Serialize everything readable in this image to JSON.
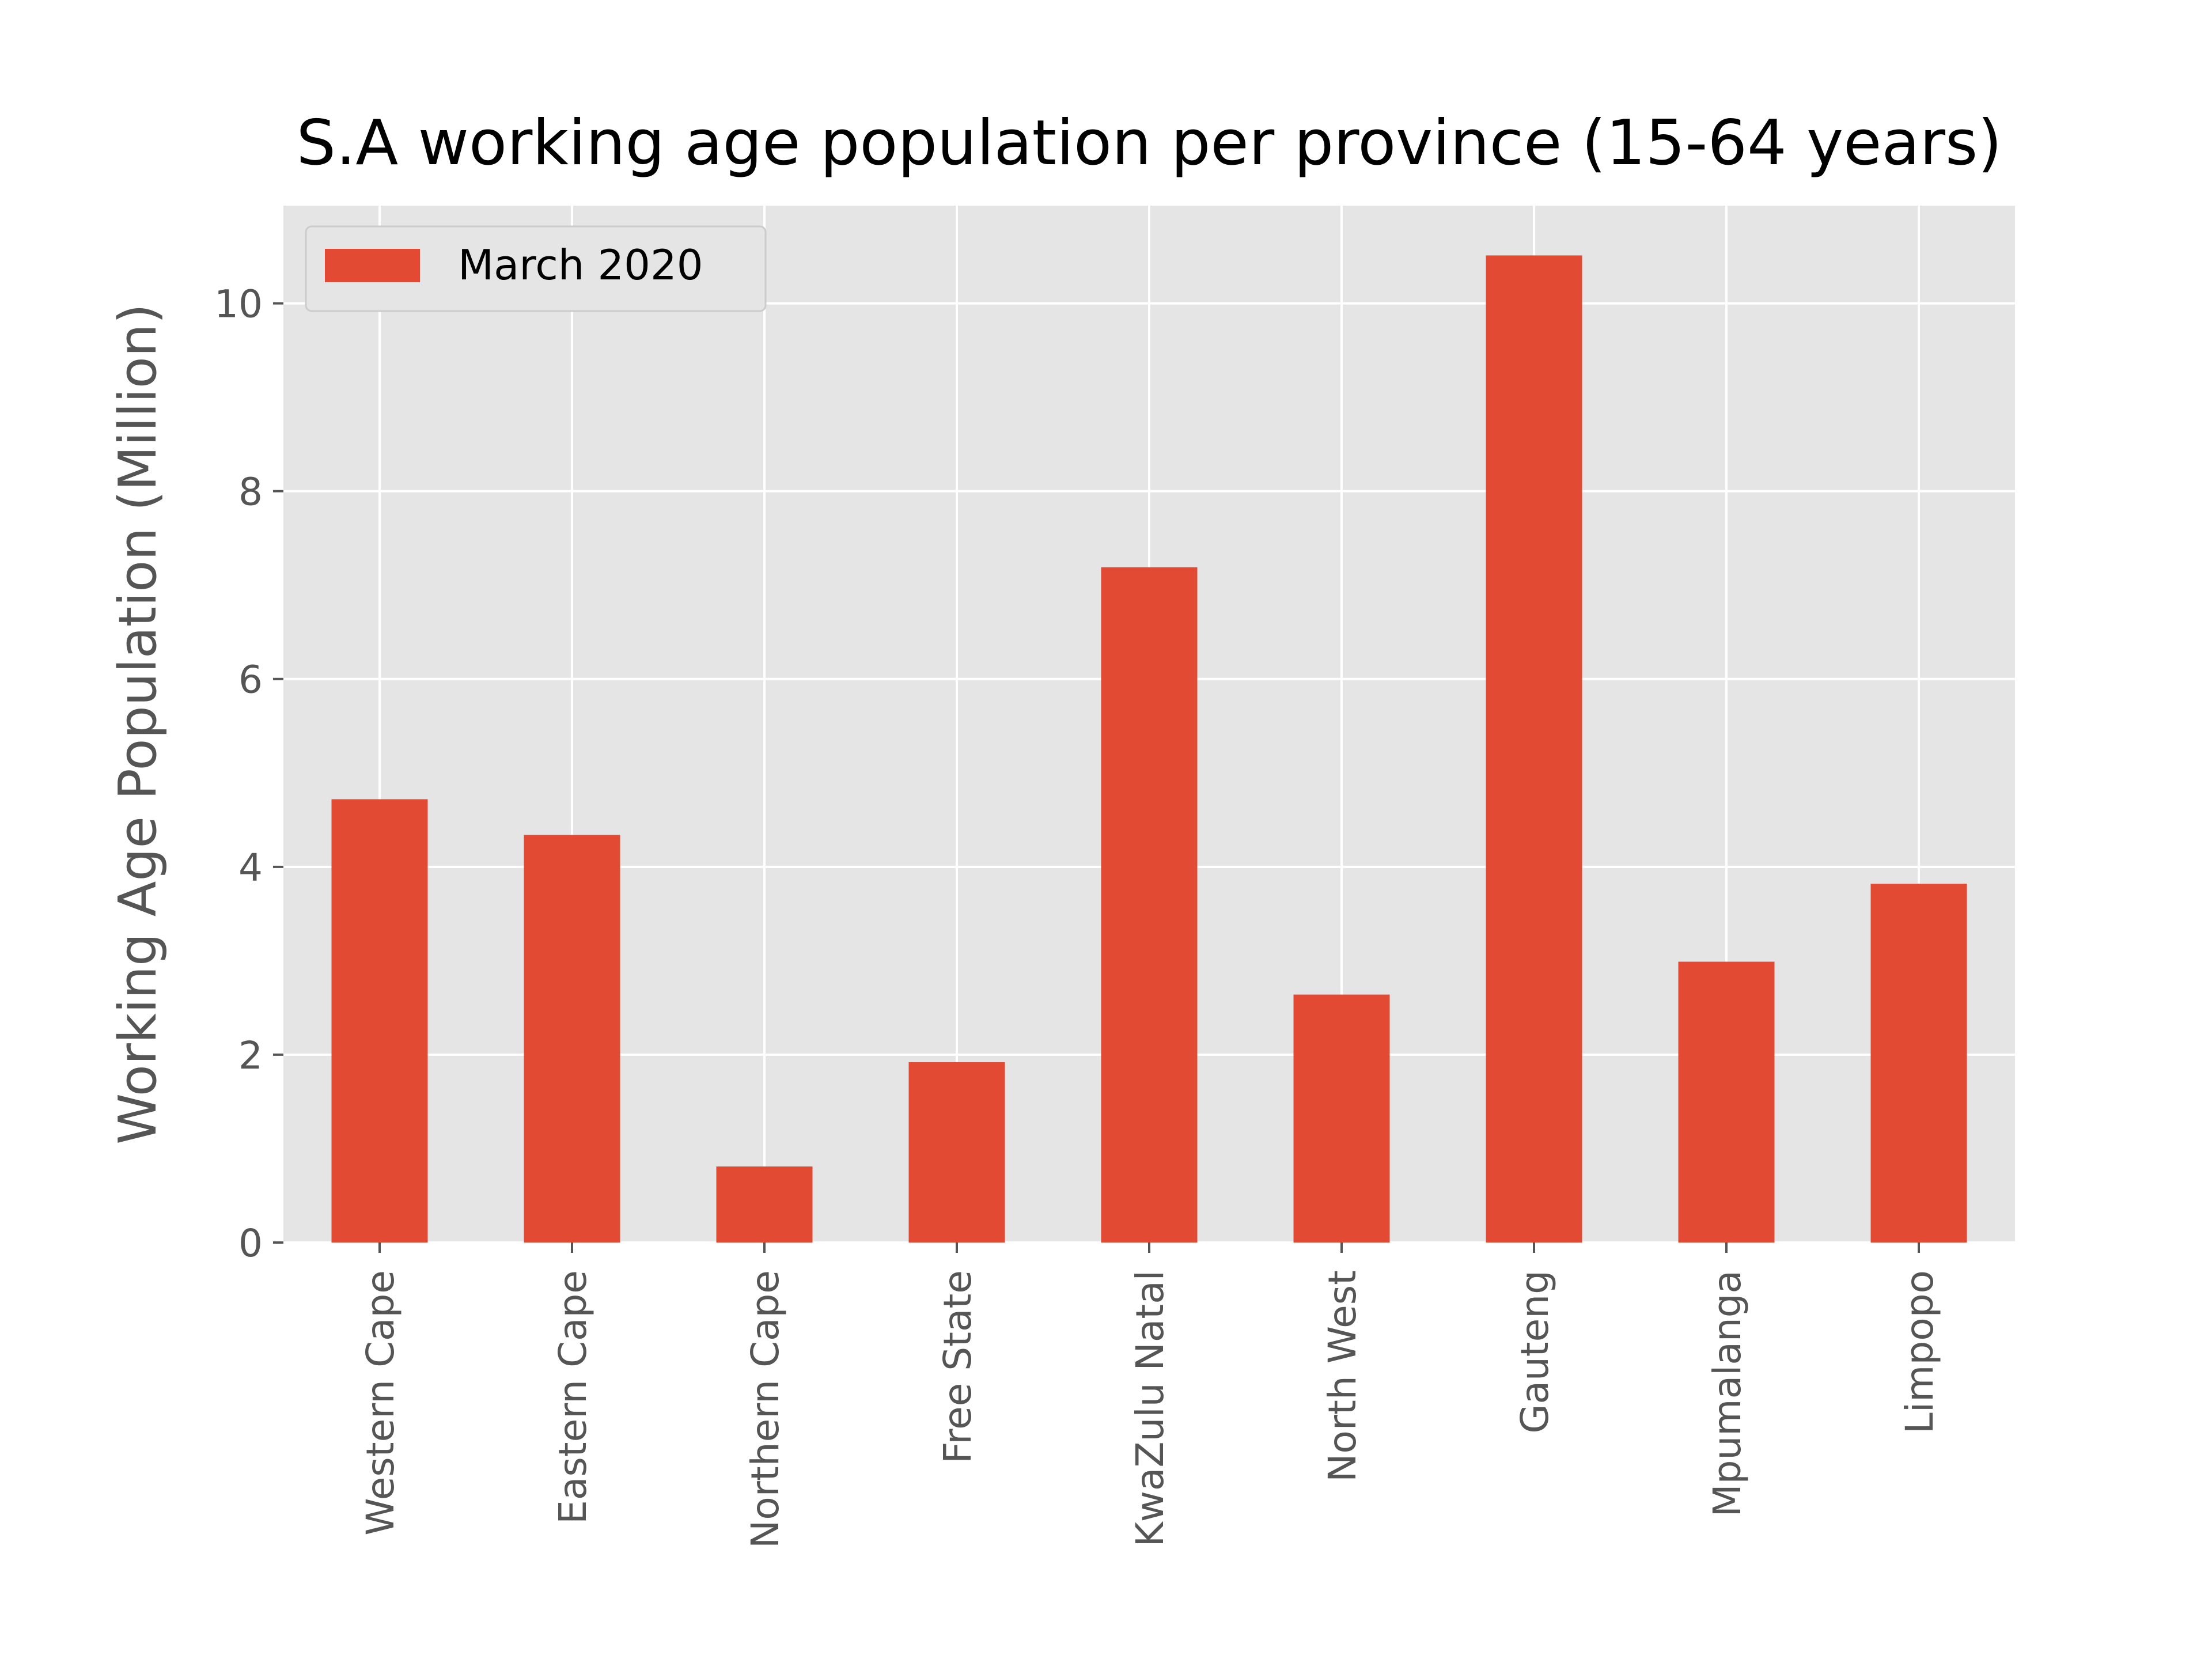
{
  "chart_data": {
    "type": "bar",
    "title": "S.A working age population per province (15-64 years)",
    "xlabel": "",
    "ylabel": "Working Age Population (Million)",
    "categories": [
      "Western Cape",
      "Eastern Cape",
      "Northern Cape",
      "Free State",
      "KwaZulu Natal",
      "North West",
      "Gauteng",
      "Mpumalanga",
      "Limpopo"
    ],
    "series": [
      {
        "name": "March 2020",
        "values": [
          4.72,
          4.34,
          0.81,
          1.92,
          7.19,
          2.64,
          10.51,
          2.99,
          3.82
        ]
      }
    ],
    "ylim": [
      0,
      11.04
    ],
    "yticks": [
      0,
      2,
      4,
      6,
      8,
      10
    ],
    "ytick_labels": [
      "0",
      "2",
      "4",
      "6",
      "8",
      "10"
    ],
    "grid": true,
    "legend_position": "upper-left",
    "colors": {
      "bar": "#E24A33",
      "plot_background": "#E5E5E5",
      "grid": "#FFFFFF",
      "text": "#555555"
    }
  }
}
